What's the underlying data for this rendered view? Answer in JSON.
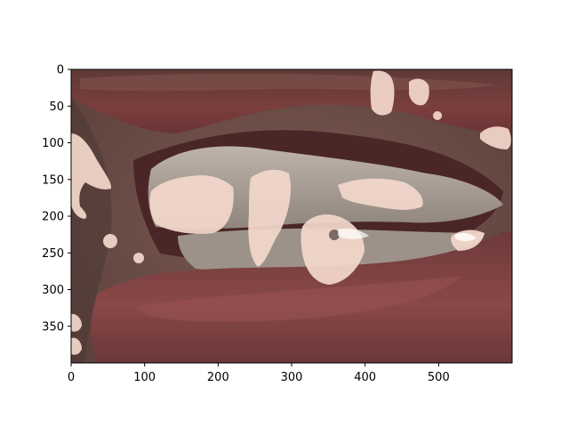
{
  "figure": {
    "x_axis": {
      "ticks": [
        {
          "value": 0,
          "label": "0"
        },
        {
          "value": 100,
          "label": "100"
        },
        {
          "value": 200,
          "label": "200"
        },
        {
          "value": 300,
          "label": "300"
        },
        {
          "value": 400,
          "label": "400"
        },
        {
          "value": 500,
          "label": "500"
        }
      ],
      "range": [
        0,
        600
      ]
    },
    "y_axis": {
      "ticks": [
        {
          "value": 0,
          "label": "0"
        },
        {
          "value": 50,
          "label": "50"
        },
        {
          "value": 100,
          "label": "100"
        },
        {
          "value": 150,
          "label": "150"
        },
        {
          "value": 200,
          "label": "200"
        },
        {
          "value": 250,
          "label": "250"
        },
        {
          "value": 300,
          "label": "300"
        },
        {
          "value": 350,
          "label": "350"
        }
      ],
      "range": [
        0,
        400
      ],
      "inverted": true
    },
    "image": {
      "subject": "close-up of mouth with lips and teeth",
      "overlay": "light pink segmentation mask patches"
    },
    "colors": {
      "skin": "#6b4a42",
      "lip": "#7a3a3a",
      "tooth": "#cfc6bd",
      "mask": "#f4d8cc",
      "gum": "#8a4b4b"
    }
  }
}
